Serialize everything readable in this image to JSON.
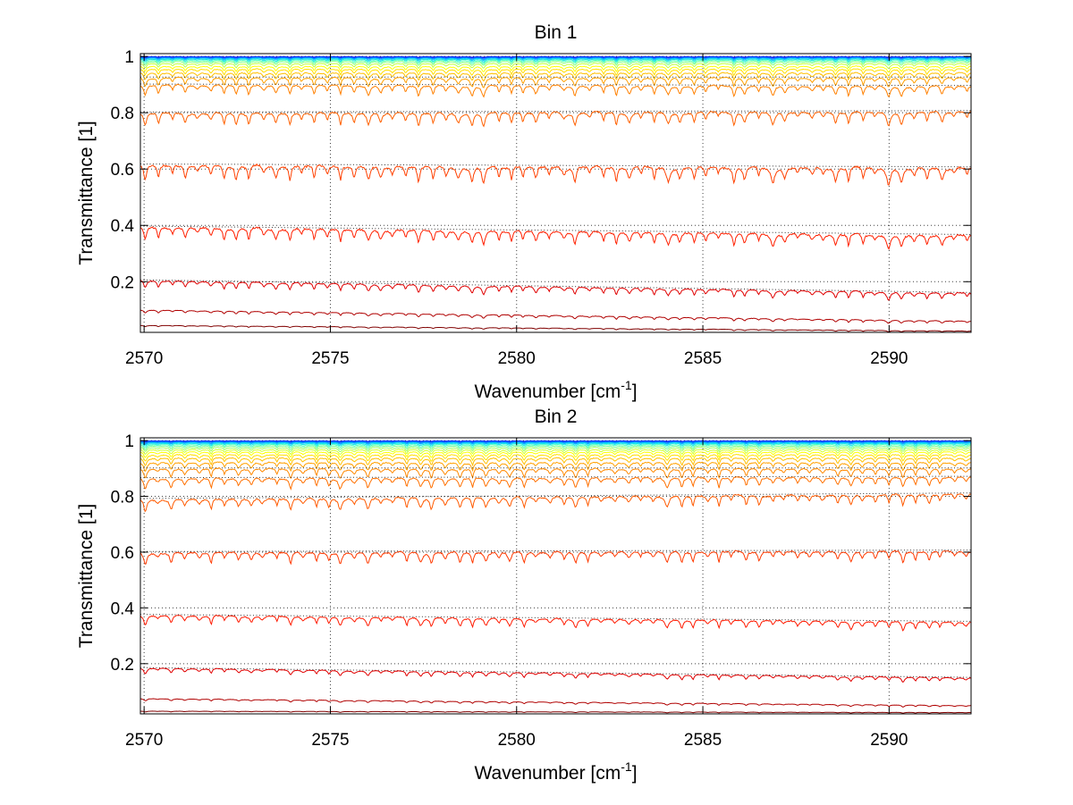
{
  "chart_data": [
    {
      "type": "line",
      "title": "Bin 1",
      "xlabel": "Wavenumber [cm",
      "xlabel_sup": "-1",
      "xlabel_end": "]",
      "ylabel": "Transmittance [1]",
      "xlim": [
        2569.9,
        2592.2
      ],
      "ylim": [
        0.02,
        1.01
      ],
      "xticks": [
        2570,
        2575,
        2580,
        2585,
        2590
      ],
      "xtick_labels": [
        "2570",
        "2575",
        "2580",
        "2585",
        "2590"
      ],
      "yticks": [
        0.2,
        0.4,
        0.6,
        0.8,
        1
      ],
      "ytick_labels": [
        "0.2",
        "0.4",
        "0.6",
        "0.8",
        "1"
      ],
      "grid": true,
      "x_range": [
        2569.9,
        2592.2
      ],
      "line_spacing_cm-1": 0.35,
      "series": [
        {
          "base": 0.999,
          "end": 0.999,
          "depth": 0.002,
          "color": "#0000ff"
        },
        {
          "base": 0.998,
          "end": 0.998,
          "depth": 0.004,
          "color": "#0040ff"
        },
        {
          "base": 0.996,
          "end": 0.996,
          "depth": 0.006,
          "color": "#0080ff"
        },
        {
          "base": 0.994,
          "end": 0.994,
          "depth": 0.008,
          "color": "#00bfff"
        },
        {
          "base": 0.991,
          "end": 0.991,
          "depth": 0.01,
          "color": "#10e0e0"
        },
        {
          "base": 0.987,
          "end": 0.987,
          "depth": 0.012,
          "color": "#40ffbf"
        },
        {
          "base": 0.982,
          "end": 0.982,
          "depth": 0.014,
          "color": "#80ff80"
        },
        {
          "base": 0.975,
          "end": 0.975,
          "depth": 0.017,
          "color": "#bfff40"
        },
        {
          "base": 0.965,
          "end": 0.965,
          "depth": 0.02,
          "color": "#ffff00"
        },
        {
          "base": 0.955,
          "end": 0.955,
          "depth": 0.024,
          "color": "#ffdf00"
        },
        {
          "base": 0.942,
          "end": 0.942,
          "depth": 0.028,
          "color": "#ffbf00"
        },
        {
          "base": 0.925,
          "end": 0.925,
          "depth": 0.034,
          "color": "#ff9f00"
        },
        {
          "base": 0.9,
          "end": 0.895,
          "depth": 0.04,
          "color": "#ff8000"
        },
        {
          "base": 0.8,
          "end": 0.805,
          "depth": 0.05,
          "color": "#ff6000"
        },
        {
          "base": 0.615,
          "end": 0.605,
          "depth": 0.06,
          "color": "#ff4000"
        },
        {
          "base": 0.395,
          "end": 0.365,
          "depth": 0.05,
          "color": "#ff2000"
        },
        {
          "base": 0.205,
          "end": 0.16,
          "depth": 0.03,
          "color": "#e00000"
        },
        {
          "base": 0.1,
          "end": 0.06,
          "depth": 0.012,
          "color": "#b00000"
        },
        {
          "base": 0.045,
          "end": 0.025,
          "depth": 0.005,
          "color": "#800000"
        }
      ]
    },
    {
      "type": "line",
      "title": "Bin 2",
      "xlabel": "Wavenumber [cm",
      "xlabel_sup": "-1",
      "xlabel_end": "]",
      "ylabel": "Transmittance [1]",
      "xlim": [
        2569.9,
        2592.2
      ],
      "ylim": [
        0.02,
        1.01
      ],
      "xticks": [
        2570,
        2575,
        2580,
        2585,
        2590
      ],
      "xtick_labels": [
        "2570",
        "2575",
        "2580",
        "2585",
        "2590"
      ],
      "yticks": [
        0.2,
        0.4,
        0.6,
        0.8,
        1
      ],
      "ytick_labels": [
        "0.2",
        "0.4",
        "0.6",
        "0.8",
        "1"
      ],
      "grid": true,
      "x_range": [
        2569.9,
        2592.2
      ],
      "line_spacing_cm-1": 0.35,
      "series": [
        {
          "base": 0.999,
          "end": 0.999,
          "depth": 0.002,
          "color": "#0000ff"
        },
        {
          "base": 0.998,
          "end": 0.998,
          "depth": 0.003,
          "color": "#0030ff"
        },
        {
          "base": 0.997,
          "end": 0.997,
          "depth": 0.004,
          "color": "#0060ff"
        },
        {
          "base": 0.995,
          "end": 0.995,
          "depth": 0.006,
          "color": "#0090ff"
        },
        {
          "base": 0.993,
          "end": 0.993,
          "depth": 0.007,
          "color": "#00c0ff"
        },
        {
          "base": 0.99,
          "end": 0.99,
          "depth": 0.009,
          "color": "#10e8e8"
        },
        {
          "base": 0.986,
          "end": 0.986,
          "depth": 0.011,
          "color": "#40ffc0"
        },
        {
          "base": 0.981,
          "end": 0.981,
          "depth": 0.013,
          "color": "#70ff90"
        },
        {
          "base": 0.975,
          "end": 0.975,
          "depth": 0.015,
          "color": "#a0ff60"
        },
        {
          "base": 0.968,
          "end": 0.968,
          "depth": 0.018,
          "color": "#d0ff30"
        },
        {
          "base": 0.96,
          "end": 0.96,
          "depth": 0.021,
          "color": "#ffff00"
        },
        {
          "base": 0.95,
          "end": 0.95,
          "depth": 0.024,
          "color": "#ffe000"
        },
        {
          "base": 0.938,
          "end": 0.938,
          "depth": 0.027,
          "color": "#ffc000"
        },
        {
          "base": 0.922,
          "end": 0.922,
          "depth": 0.031,
          "color": "#ffa000"
        },
        {
          "base": 0.9,
          "end": 0.9,
          "depth": 0.036,
          "color": "#ff8800"
        },
        {
          "base": 0.865,
          "end": 0.87,
          "depth": 0.04,
          "color": "#ff7000"
        },
        {
          "base": 0.79,
          "end": 0.81,
          "depth": 0.045,
          "color": "#ff5a00"
        },
        {
          "base": 0.6,
          "end": 0.605,
          "depth": 0.045,
          "color": "#ff3a00"
        },
        {
          "base": 0.375,
          "end": 0.35,
          "depth": 0.035,
          "color": "#ff1a00"
        },
        {
          "base": 0.185,
          "end": 0.15,
          "depth": 0.02,
          "color": "#e00000"
        },
        {
          "base": 0.075,
          "end": 0.05,
          "depth": 0.008,
          "color": "#b00000"
        },
        {
          "base": 0.03,
          "end": 0.025,
          "depth": 0.003,
          "color": "#800000"
        }
      ]
    }
  ]
}
